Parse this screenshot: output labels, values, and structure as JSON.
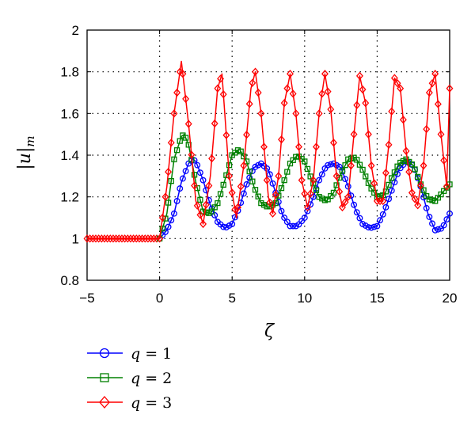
{
  "chart_data": {
    "type": "line",
    "xlabel": "ζ",
    "ylabel": "|u|_m",
    "xlim": [
      -5,
      20
    ],
    "ylim": [
      0.8,
      2
    ],
    "xticks": [
      -5,
      0,
      5,
      10,
      15,
      20
    ],
    "yticks": [
      0.8,
      1,
      1.2,
      1.4,
      1.6,
      1.8,
      2
    ],
    "xtick_labels": [
      "−5",
      "0",
      "5",
      "10",
      "15",
      "20"
    ],
    "ytick_labels": [
      "0.8",
      "1",
      "1.2",
      "1.4",
      "1.6",
      "1.8",
      "2"
    ],
    "grid": true,
    "legend_position": "below",
    "series": [
      {
        "name": "q = 1",
        "color": "#0000ff",
        "marker": "circle",
        "x": [
          0,
          0.5,
          1,
          1.5,
          2,
          2.3,
          2.5,
          3,
          3.5,
          4,
          4.5,
          5,
          5.5,
          6,
          6.5,
          7,
          7.5,
          8,
          8.5,
          9,
          9.5,
          10,
          10.5,
          11,
          11.5,
          12,
          12.5,
          13,
          13.5,
          14,
          14.5,
          15,
          15.5,
          16,
          16.5,
          17,
          17.5,
          18,
          18.5,
          19,
          19.5,
          20
        ],
        "y": [
          1.0,
          1.04,
          1.12,
          1.27,
          1.36,
          1.38,
          1.37,
          1.28,
          1.16,
          1.08,
          1.05,
          1.07,
          1.15,
          1.26,
          1.34,
          1.36,
          1.33,
          1.22,
          1.11,
          1.06,
          1.06,
          1.1,
          1.18,
          1.28,
          1.35,
          1.36,
          1.34,
          1.25,
          1.14,
          1.07,
          1.05,
          1.06,
          1.13,
          1.23,
          1.33,
          1.37,
          1.35,
          1.25,
          1.12,
          1.04,
          1.05,
          1.12
        ]
      },
      {
        "name": "q = 2",
        "color": "#008000",
        "marker": "square",
        "x": [
          0,
          0.5,
          1,
          1.5,
          1.7,
          2,
          2.5,
          3,
          3.5,
          4,
          4.5,
          5,
          5.5,
          6,
          6.5,
          7,
          7.5,
          8,
          8.5,
          9,
          9.5,
          10,
          10.5,
          11,
          11.5,
          12,
          12.5,
          13,
          13.5,
          14,
          14.5,
          15,
          15.5,
          16,
          16.5,
          17,
          17.5,
          18,
          18.5,
          19,
          19.5,
          20
        ],
        "y": [
          1.0,
          1.12,
          1.38,
          1.49,
          1.5,
          1.45,
          1.27,
          1.13,
          1.12,
          1.17,
          1.28,
          1.4,
          1.43,
          1.37,
          1.25,
          1.17,
          1.15,
          1.17,
          1.26,
          1.36,
          1.4,
          1.37,
          1.28,
          1.2,
          1.18,
          1.22,
          1.31,
          1.38,
          1.39,
          1.33,
          1.25,
          1.2,
          1.21,
          1.29,
          1.36,
          1.38,
          1.35,
          1.26,
          1.19,
          1.18,
          1.22,
          1.26
        ]
      },
      {
        "name": "q = 3",
        "color": "#ff0000",
        "marker": "diamond",
        "x": [
          0,
          0.5,
          1,
          1.5,
          2,
          2.5,
          3,
          3.5,
          4,
          4.3,
          4.8,
          5.3,
          5.8,
          6.3,
          6.6,
          7,
          7.5,
          7.8,
          8.2,
          8.6,
          9,
          9.4,
          9.8,
          10.2,
          10.6,
          11,
          11.4,
          11.8,
          12.2,
          12.6,
          13,
          13.4,
          13.8,
          14.2,
          14.6,
          15,
          15.4,
          15.8,
          16.2,
          16.6,
          17,
          17.4,
          17.8,
          18.2,
          18.6,
          19,
          19.4,
          19.8,
          20
        ],
        "y": [
          1.0,
          1.25,
          1.6,
          1.85,
          1.55,
          1.18,
          1.07,
          1.3,
          1.72,
          1.79,
          1.3,
          1.1,
          1.35,
          1.72,
          1.8,
          1.6,
          1.2,
          1.12,
          1.3,
          1.65,
          1.79,
          1.6,
          1.28,
          1.15,
          1.28,
          1.6,
          1.79,
          1.62,
          1.3,
          1.15,
          1.2,
          1.5,
          1.78,
          1.65,
          1.35,
          1.18,
          1.18,
          1.45,
          1.77,
          1.72,
          1.42,
          1.22,
          1.16,
          1.35,
          1.7,
          1.79,
          1.5,
          1.25,
          1.72
        ]
      }
    ],
    "lead_in": {
      "x_start": -5,
      "x_end": 0,
      "y": 1.0
    }
  }
}
